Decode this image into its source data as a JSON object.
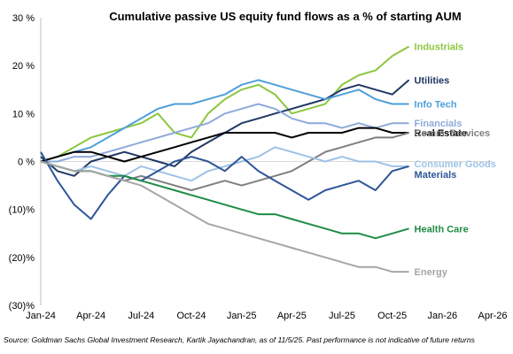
{
  "chart_data": {
    "type": "line",
    "title": "Cumulative passive US equity fund flows as a % of starting AUM",
    "xlabel": "",
    "ylabel": "",
    "xlim": [
      0,
      27
    ],
    "ylim": [
      -30,
      30
    ],
    "y_ticks": [
      30,
      20,
      10,
      0,
      -10,
      -20,
      -30
    ],
    "y_tick_labels": [
      "30 %",
      "20 %",
      "10 %",
      "0 %",
      "(10)%",
      "(20)%",
      "(30)%"
    ],
    "x_ticks": [
      0,
      3,
      6,
      9,
      12,
      15,
      18,
      21,
      24,
      27
    ],
    "x_tick_labels": [
      "Jan-24",
      "Apr-24",
      "Jul-24",
      "Oct-24",
      "Jan-25",
      "Apr-25",
      "Jul-25",
      "Oct-25",
      "Jan-26",
      "Apr-26"
    ],
    "zero_line": true,
    "grid": false,
    "legend": "inline labels at right end of each line",
    "series": [
      {
        "name": "Industrials",
        "color": "#8DC63F",
        "x": [
          0,
          1,
          2,
          3,
          4,
          5,
          6,
          7,
          8,
          9,
          10,
          11,
          12,
          13,
          14,
          15,
          16,
          17,
          18,
          19,
          20,
          21,
          22
        ],
        "y": [
          0,
          1,
          3,
          5,
          6,
          7,
          8,
          10,
          6,
          5,
          10,
          13,
          15,
          16,
          14,
          10,
          11,
          12,
          16,
          18,
          19,
          22,
          24
        ]
      },
      {
        "name": "Utilities",
        "color": "#1F3864",
        "x": [
          0,
          1,
          2,
          3,
          4,
          5,
          6,
          7,
          8,
          9,
          10,
          11,
          12,
          13,
          14,
          15,
          16,
          17,
          18,
          19,
          20,
          21,
          22
        ],
        "y": [
          1,
          -2,
          -3,
          0,
          1,
          2,
          1,
          0,
          -1,
          2,
          4,
          6,
          8,
          9,
          10,
          11,
          12,
          13,
          15,
          16,
          15,
          14,
          17
        ]
      },
      {
        "name": "Info Tech",
        "color": "#4F9FD9",
        "x": [
          0,
          1,
          2,
          3,
          4,
          5,
          6,
          7,
          8,
          9,
          10,
          11,
          12,
          13,
          14,
          15,
          16,
          17,
          18,
          19,
          20,
          21,
          22
        ],
        "y": [
          0,
          1,
          2,
          3,
          5,
          7,
          9,
          11,
          12,
          12,
          13,
          14,
          16,
          17,
          16,
          15,
          14,
          13,
          14,
          15,
          13,
          12,
          12
        ]
      },
      {
        "name": "Financials",
        "color": "#8EAADB",
        "x": [
          0,
          1,
          2,
          3,
          4,
          5,
          6,
          7,
          8,
          9,
          10,
          11,
          12,
          13,
          14,
          15,
          16,
          17,
          18,
          19,
          20,
          21,
          22
        ],
        "y": [
          0,
          0,
          1,
          1,
          2,
          3,
          4,
          5,
          6,
          7,
          8,
          10,
          11,
          12,
          11,
          9,
          8,
          8,
          7,
          8,
          7,
          8,
          8
        ]
      },
      {
        "name": "Real Estate",
        "color": "#000000",
        "x": [
          0,
          1,
          2,
          3,
          4,
          5,
          6,
          7,
          8,
          9,
          10,
          11,
          12,
          13,
          14,
          15,
          16,
          17,
          18,
          19,
          20,
          21,
          22
        ],
        "y": [
          0,
          1,
          2,
          2,
          1,
          0,
          1,
          2,
          3,
          4,
          5,
          6,
          6,
          6,
          6,
          5,
          6,
          6,
          6,
          7,
          7,
          6,
          6
        ]
      },
      {
        "name": "Comm. Services",
        "color": "#7F7F7F",
        "x": [
          0,
          1,
          2,
          3,
          4,
          5,
          6,
          7,
          8,
          9,
          10,
          11,
          12,
          13,
          14,
          15,
          16,
          17,
          18,
          19,
          20,
          21,
          22
        ],
        "y": [
          0,
          -1,
          -2,
          -2,
          -3,
          -4,
          -3,
          -4,
          -5,
          -6,
          -5,
          -4,
          -5,
          -4,
          -3,
          -2,
          0,
          2,
          3,
          4,
          5,
          5,
          6
        ]
      },
      {
        "name": "Consumer Goods",
        "color": "#9DC3E6",
        "x": [
          0,
          1,
          2,
          3,
          4,
          5,
          6,
          7,
          8,
          9,
          10,
          11,
          12,
          13,
          14,
          15,
          16,
          17,
          18,
          19,
          20,
          21,
          22
        ],
        "y": [
          0,
          -1,
          -2,
          -1,
          -2,
          -3,
          -1,
          -2,
          -3,
          -4,
          -2,
          -1,
          0,
          1,
          3,
          2,
          1,
          0,
          1,
          0,
          0,
          -1,
          -1
        ]
      },
      {
        "name": "Materials",
        "color": "#2E5597",
        "x": [
          0,
          1,
          2,
          3,
          4,
          5,
          6,
          7,
          8,
          9,
          10,
          11,
          12,
          13,
          14,
          15,
          16,
          17,
          18,
          19,
          20,
          21,
          22
        ],
        "y": [
          2,
          -4,
          -9,
          -12,
          -7,
          -3,
          -4,
          -2,
          0,
          1,
          0,
          -2,
          1,
          -2,
          -4,
          -6,
          -8,
          -6,
          -5,
          -4,
          -6,
          -2,
          -1
        ]
      },
      {
        "name": "Health Care",
        "color": "#1E8C45",
        "x": [
          0,
          1,
          2,
          3,
          4,
          5,
          6,
          7,
          8,
          9,
          10,
          11,
          12,
          13,
          14,
          15,
          16,
          17,
          18,
          19,
          20,
          21,
          22
        ],
        "y": [
          0,
          -1,
          -2,
          -2,
          -3,
          -3,
          -4,
          -5,
          -6,
          -7,
          -8,
          -9,
          -10,
          -11,
          -11,
          -12,
          -13,
          -14,
          -15,
          -15,
          -16,
          -15,
          -14
        ]
      },
      {
        "name": "Energy",
        "color": "#A6A6A6",
        "x": [
          0,
          1,
          2,
          3,
          4,
          5,
          6,
          7,
          8,
          9,
          10,
          11,
          12,
          13,
          14,
          15,
          16,
          17,
          18,
          19,
          20,
          21,
          22
        ],
        "y": [
          0,
          -1,
          -2,
          -2,
          -3,
          -4,
          -5,
          -7,
          -9,
          -11,
          -13,
          -14,
          -15,
          -16,
          -17,
          -18,
          -19,
          -20,
          -21,
          -22,
          -22,
          -23,
          -23
        ]
      }
    ]
  },
  "source": "Source: Goldman Sachs Global Investment Research, Kartik Jayachandran, as of 11/5/25. Past performance is not indicative of future returns"
}
